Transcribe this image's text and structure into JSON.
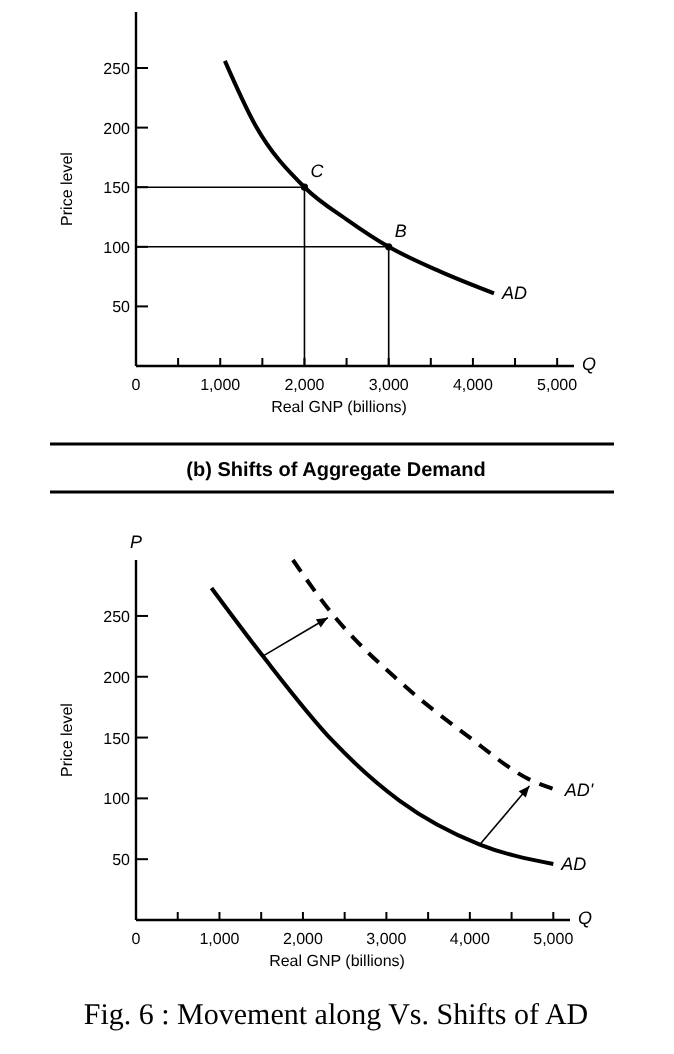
{
  "chart_data": [
    {
      "type": "line",
      "xlabel": "Real GNP (billions)",
      "ylabel": "Price level",
      "xlim": [
        0,
        5200
      ],
      "ylim": [
        0,
        297
      ],
      "xticks": [
        {
          "value": 0,
          "label": "0"
        },
        {
          "value": 500,
          "label": null
        },
        {
          "value": 1000,
          "label": "1,000"
        },
        {
          "value": 1500,
          "label": null
        },
        {
          "value": 2000,
          "label": "2,000"
        },
        {
          "value": 2500,
          "label": null
        },
        {
          "value": 3000,
          "label": "3,000"
        },
        {
          "value": 3500,
          "label": null
        },
        {
          "value": 4000,
          "label": "4,000"
        },
        {
          "value": 4500,
          "label": null
        },
        {
          "value": 5000,
          "label": "5,000"
        }
      ],
      "yticks": [
        50,
        100,
        150,
        200,
        250
      ],
      "series": [
        {
          "name": "AD",
          "color": "#000000",
          "x": [
            1055,
            1417,
            2000,
            2520,
            3000,
            3620,
            4250
          ],
          "values": [
            256,
            202,
            150,
            122,
            100,
            79,
            61
          ]
        },
        {
          "color": "#000000",
          "x": [
            0,
            2000,
            2000
          ],
          "values": [
            150,
            150,
            0
          ]
        },
        {
          "color": "#000000",
          "x": [
            0,
            3000,
            3000
          ],
          "values": [
            100,
            100,
            0
          ]
        },
        {
          "type": "scatter",
          "marker": "circle",
          "color": "#000000",
          "x": [
            2000,
            3000
          ],
          "values": [
            150,
            100
          ]
        }
      ],
      "annotations": [
        {
          "text": "C",
          "x": 2000,
          "y": 150
        },
        {
          "text": "B",
          "x": 3000,
          "y": 100
        },
        "Q"
      ]
    },
    {
      "type": "line",
      "title": "(b) Shifts of Aggregate Demand",
      "xlabel": "Real GNP (billions)",
      "ylabel": "Price level",
      "xlim": [
        0,
        5200
      ],
      "ylim": [
        0,
        296
      ],
      "xticks": [
        {
          "value": 0,
          "label": "0"
        },
        {
          "value": 500,
          "label": null
        },
        {
          "value": 1000,
          "label": "1,000"
        },
        {
          "value": 1500,
          "label": null
        },
        {
          "value": 2000,
          "label": "2,000"
        },
        {
          "value": 2500,
          "label": null
        },
        {
          "value": 3000,
          "label": "3,000"
        },
        {
          "value": 3500,
          "label": null
        },
        {
          "value": 4000,
          "label": "4,000"
        },
        {
          "value": 4500,
          "label": null
        },
        {
          "value": 5000,
          "label": "5,000"
        }
      ],
      "yticks": [
        50,
        100,
        150,
        200,
        250
      ],
      "series": [
        {
          "name": "AD",
          "color": "#000000",
          "line_style": "solid",
          "x": [
            904,
            1520,
            2360,
            3160,
            4120,
            5000
          ],
          "values": [
            273,
            217,
            147,
            98,
            62,
            46
          ]
        },
        {
          "name": "AD'",
          "color": "#000000",
          "line_style": "dashed",
          "x": [
            1880,
            2360,
            3160,
            3960,
            4760,
            5040
          ],
          "values": [
            296,
            251,
            196,
            152,
            114,
            107
          ]
        }
      ],
      "annotations": [
        "Q",
        "P",
        "Fig. 6 : Movement along Vs. Shifts of AD"
      ]
    }
  ]
}
